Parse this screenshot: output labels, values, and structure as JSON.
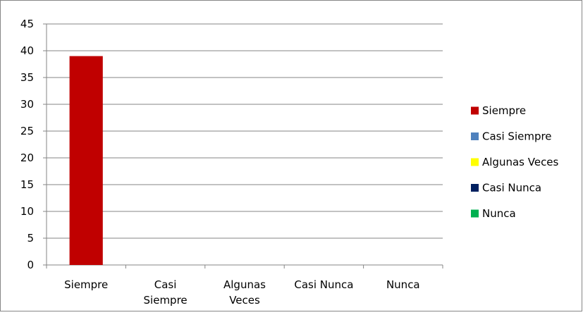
{
  "chart_data": {
    "type": "bar",
    "categories": [
      [
        "Siempre"
      ],
      [
        "Casi",
        "Siempre"
      ],
      [
        "Algunas",
        "Veces"
      ],
      [
        "Casi Nunca"
      ],
      [
        "Nunca"
      ]
    ],
    "series": [
      {
        "name": "Siempre",
        "value": 39,
        "color": "#c00000"
      },
      {
        "name": "Casi Siempre",
        "value": 0,
        "color": "#4f81bd"
      },
      {
        "name": "Algunas Veces",
        "value": 0,
        "color": "#ffff00"
      },
      {
        "name": "Casi Nunca",
        "value": 0,
        "color": "#002060"
      },
      {
        "name": "Nunca",
        "value": 0,
        "color": "#00b050"
      }
    ],
    "y_ticks": [
      "0",
      "5",
      "10",
      "15",
      "20",
      "25",
      "30",
      "35",
      "40",
      "45"
    ],
    "ylim": [
      0,
      45
    ],
    "y_step": 5,
    "grid": true,
    "legend_position": "right",
    "colors": {
      "gridline": "#868686",
      "axis": "#868686",
      "border": "#868686"
    }
  }
}
